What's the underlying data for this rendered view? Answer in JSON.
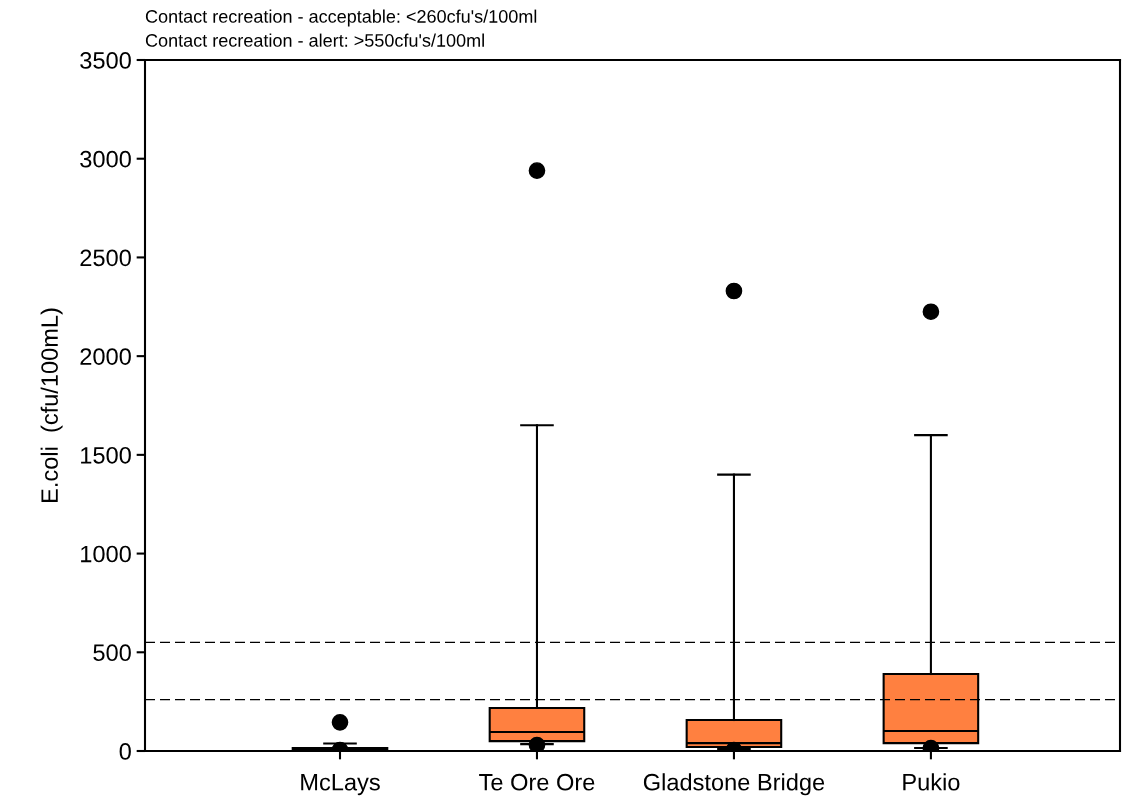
{
  "chart_data": {
    "type": "box",
    "ylabel": "E.coli  (cfu/100mL)",
    "annotations": [
      "Contact recreation - acceptable: <260cfu's/100ml",
      "Contact recreation - alert: >550cfu's/100ml"
    ],
    "categories": [
      "McLays",
      "Te Ore Ore",
      "Gladstone Bridge",
      "Pukio"
    ],
    "color": "#ff8040",
    "boxes": [
      {
        "low": 0,
        "q1": 3,
        "median": 8,
        "q3": 15,
        "high": 38,
        "outliers": [
          145,
          5
        ]
      },
      {
        "low": 35,
        "q1": 50,
        "median": 96,
        "q3": 218,
        "high": 1650,
        "outliers": [
          2940,
          30
        ]
      },
      {
        "low": 10,
        "q1": 20,
        "median": 40,
        "q3": 157,
        "high": 1400,
        "outliers": [
          2330,
          5
        ]
      },
      {
        "low": 15,
        "q1": 40,
        "median": 101,
        "q3": 390,
        "high": 1600,
        "outliers": [
          2225,
          15
        ]
      }
    ],
    "ylim": [
      0,
      3500
    ],
    "yticks": [
      0,
      500,
      1000,
      1500,
      2000,
      2500,
      3000,
      3500
    ],
    "ref_lines": [
      {
        "axis": "y",
        "value": 550,
        "line_style": "dashed"
      },
      {
        "axis": "y",
        "value": 260,
        "line_style": "dashed"
      }
    ],
    "legend": false
  }
}
